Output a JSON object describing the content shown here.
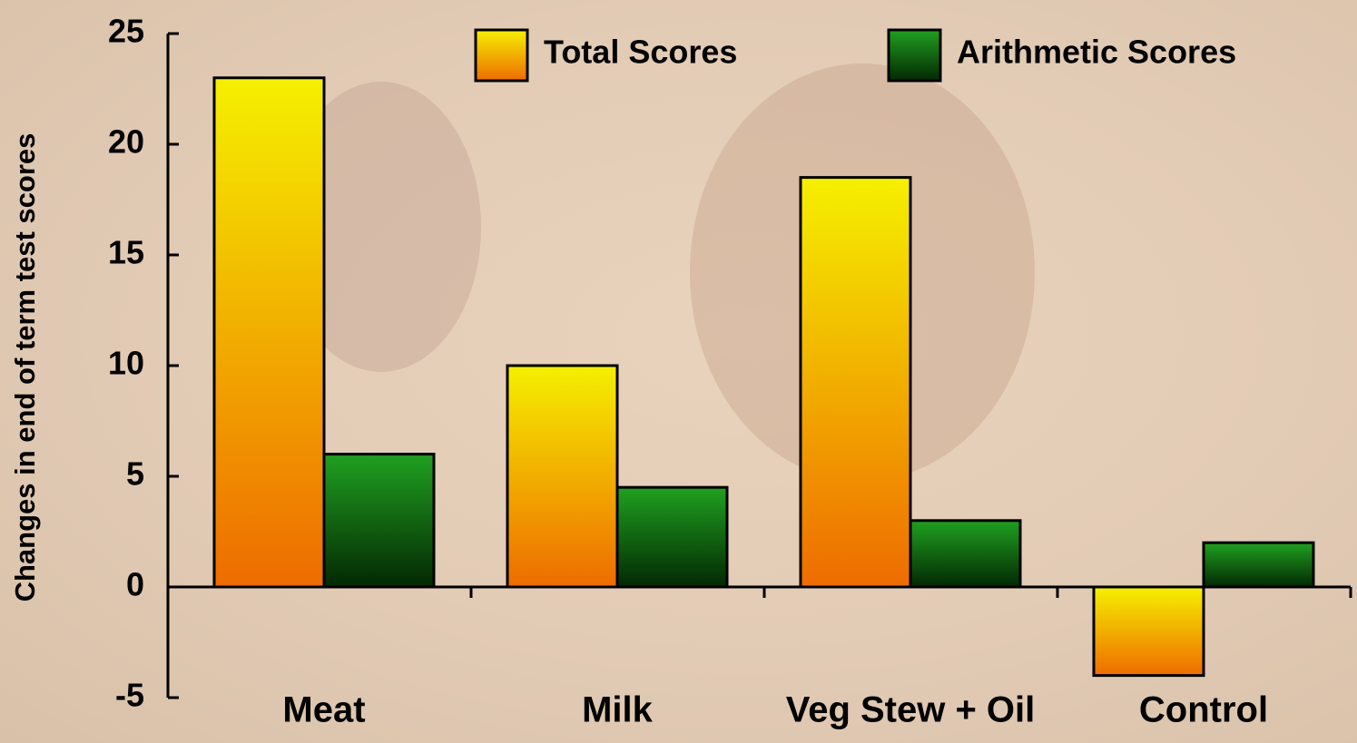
{
  "chart_data": {
    "type": "bar",
    "y_label": "Changes in end of term test scores",
    "categories": [
      "Meat",
      "Milk",
      "Veg Stew + Oil",
      "Control"
    ],
    "series": [
      {
        "name": "Total Scores",
        "color": "#f5f000",
        "values": [
          23,
          10,
          18.5,
          -4
        ]
      },
      {
        "name": "Arithmetic Scores",
        "color": "#20a020",
        "values": [
          6,
          4.5,
          3,
          2
        ]
      }
    ],
    "ylim": [
      -5,
      25
    ],
    "yticks": [
      -5,
      0,
      5,
      10,
      15,
      20,
      25
    ],
    "legend": "top"
  }
}
